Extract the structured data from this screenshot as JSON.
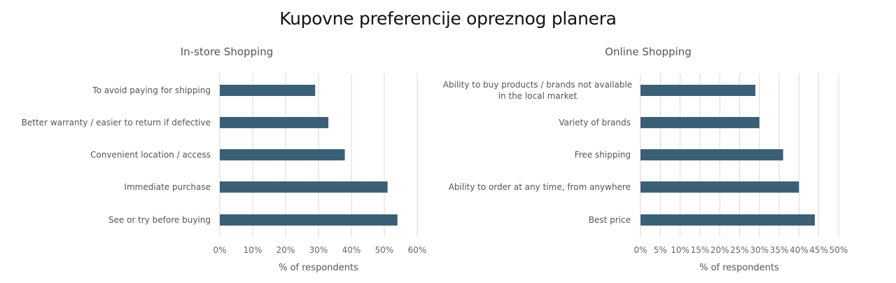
{
  "title": "Kupovne preferencije opreznog planera",
  "colors": {
    "bar": "#3a6078",
    "grid": "#d9d9d9"
  },
  "chart_data": [
    {
      "type": "bar",
      "orientation": "horizontal",
      "title": "In-store Shopping",
      "xlabel": "% of respondents",
      "xlim": [
        0,
        60
      ],
      "ticks": [
        0,
        10,
        20,
        30,
        40,
        50,
        60
      ],
      "tick_labels": [
        "0%",
        "10%",
        "20%",
        "30%",
        "40%",
        "50%",
        "60%"
      ],
      "grid": true,
      "categories": [
        [
          "To avoid paying for shipping"
        ],
        [
          "Better warranty / easier to return if defective"
        ],
        [
          "Convenient location / access"
        ],
        [
          "Immediate purchase"
        ],
        [
          "See or try before buying"
        ]
      ],
      "values": [
        29,
        33,
        38,
        51,
        54
      ]
    },
    {
      "type": "bar",
      "orientation": "horizontal",
      "title": "Online Shopping",
      "xlabel": "% of respondents",
      "xlim": [
        0,
        50
      ],
      "ticks": [
        0,
        5,
        10,
        15,
        20,
        25,
        30,
        35,
        40,
        45,
        50
      ],
      "tick_labels": [
        "0%",
        "5%",
        "10%",
        "15%",
        "20%",
        "25%",
        "30%",
        "35%",
        "40%",
        "45%",
        "50%"
      ],
      "grid": true,
      "categories": [
        [
          "Ability to buy products / brands not available",
          "in the local market"
        ],
        [
          "Variety of brands"
        ],
        [
          "Free shipping"
        ],
        [
          "Ability to order at any time, from anywhere"
        ],
        [
          "Best price"
        ]
      ],
      "values": [
        29,
        30,
        36,
        40,
        44
      ]
    }
  ]
}
